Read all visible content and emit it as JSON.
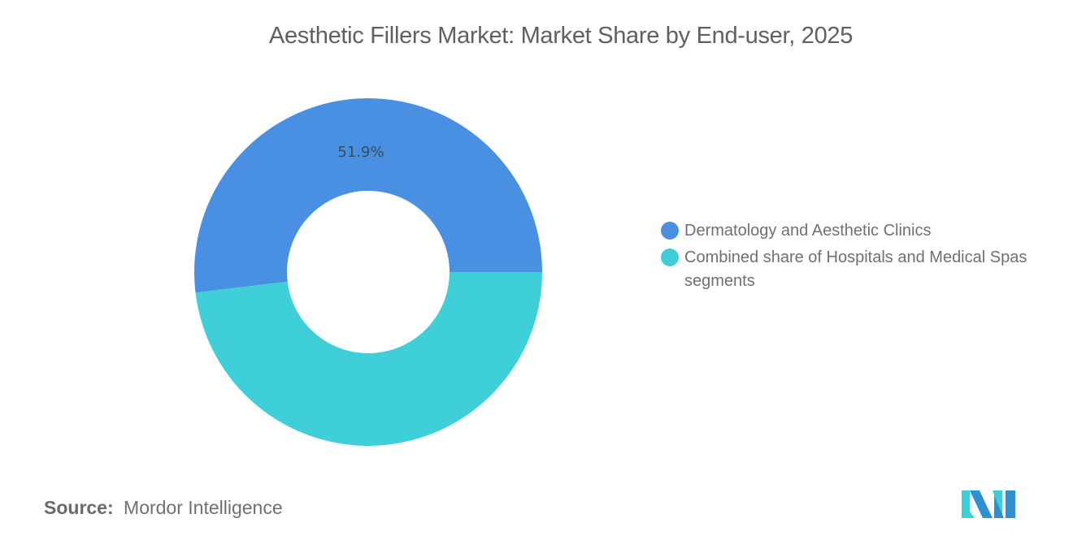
{
  "title": "Aesthetic Fillers Market: Market Share by End-user, 2025",
  "chart_data": {
    "type": "pie",
    "variant": "donut",
    "title": "Aesthetic Fillers Market: Market Share by End-user, 2025",
    "categories": [
      "Dermatology and Aesthetic Clinics",
      "Combined share of Hospitals and Medical Spas segments"
    ],
    "values": [
      51.9,
      48.1
    ],
    "colors": [
      "#4a90e2",
      "#3ecfd9"
    ],
    "data_labels": [
      "51.9%",
      ""
    ],
    "legend_position": "right",
    "unit": "%"
  },
  "slice_labels": {
    "first": "51.9%"
  },
  "legend": {
    "items": [
      {
        "label": "Dermatology and Aesthetic Clinics",
        "color": "#4a90e2"
      },
      {
        "label": "Combined share of Hospitals and Medical Spas segments",
        "color": "#3ecfd9"
      }
    ]
  },
  "footer": {
    "source_key": "Source:",
    "source_value": "Mordor Intelligence",
    "logo": "mordor-intelligence-logo"
  }
}
